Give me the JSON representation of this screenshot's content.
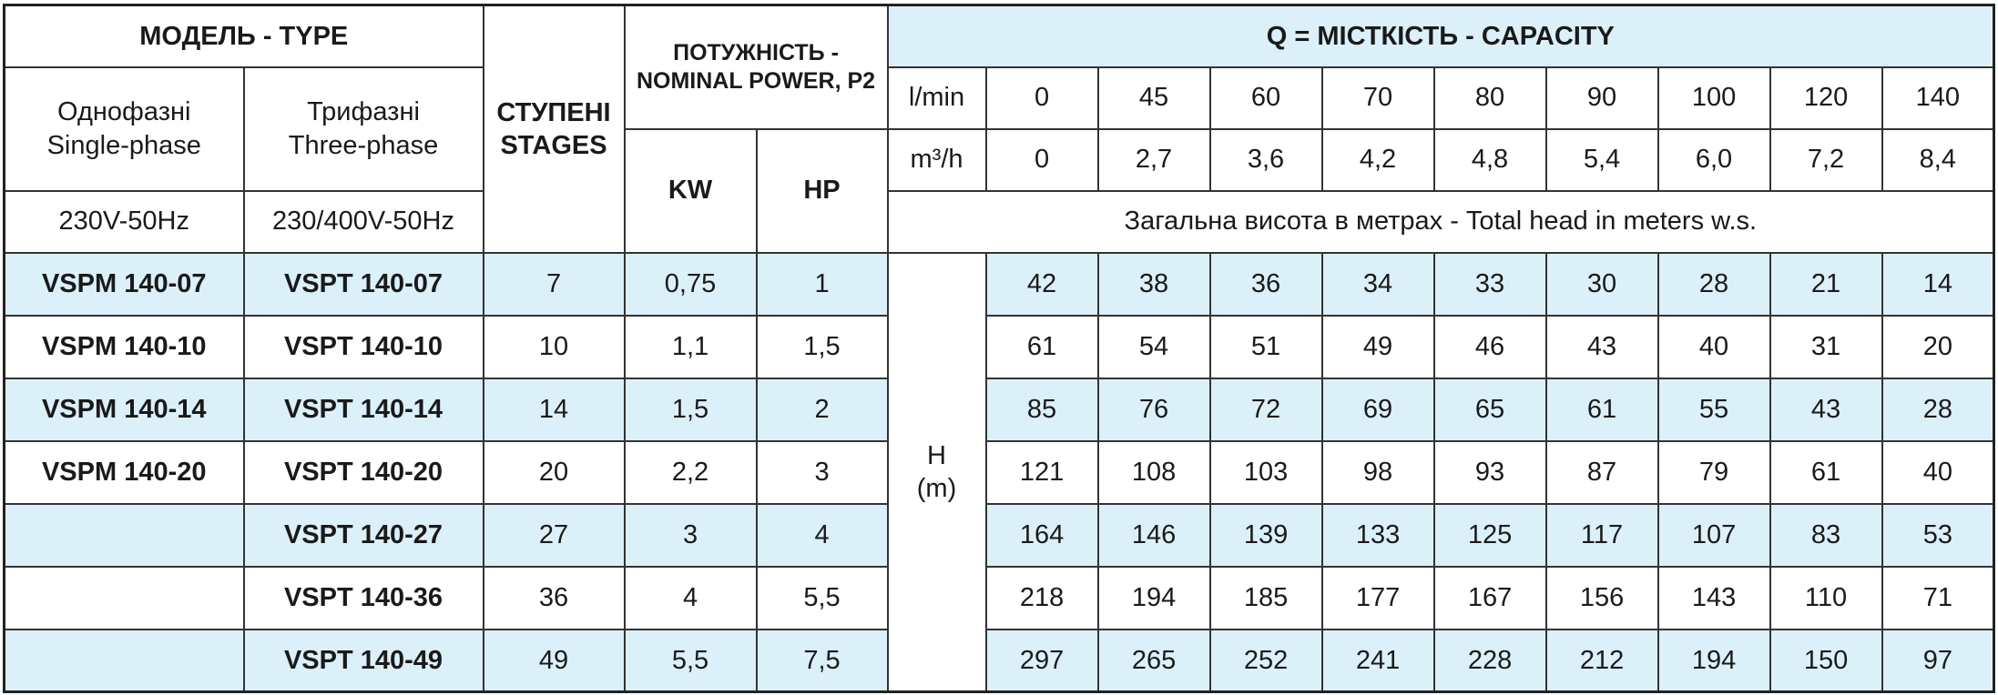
{
  "header": {
    "model_type": "МОДЕЛЬ - TYPE",
    "single_phase": [
      "Однофазні",
      "Single-phase"
    ],
    "three_phase": [
      "Трифазні",
      "Three-phase"
    ],
    "stages": [
      "СТУПЕНІ",
      "STAGES"
    ],
    "power": "ПОТУЖНІСТЬ - NOMINAL POWER, P2",
    "kw": "KW",
    "hp": "HP",
    "capacity": "Q = МІСТКІСТЬ - CAPACITY",
    "lmin_label": "l/min",
    "m3h_label": "m³/h",
    "lmin": [
      "0",
      "45",
      "60",
      "70",
      "80",
      "90",
      "100",
      "120",
      "140"
    ],
    "m3h": [
      "0",
      "2,7",
      "3,6",
      "4,2",
      "4,8",
      "5,4",
      "6,0",
      "7,2",
      "8,4"
    ],
    "single_voltage": "230V-50Hz",
    "three_voltage": "230/400V-50Hz",
    "total_head": "Загальна висота в метрах - Total head in meters w.s.",
    "h_label": [
      "H",
      "(m)"
    ]
  },
  "rows": [
    {
      "single": "VSPM 140-07",
      "three": "VSPT 140-07",
      "stages": "7",
      "kw": "0,75",
      "hp": "1",
      "head": [
        42,
        38,
        36,
        34,
        33,
        30,
        28,
        21,
        14
      ]
    },
    {
      "single": "VSPM 140-10",
      "three": "VSPT 140-10",
      "stages": "10",
      "kw": "1,1",
      "hp": "1,5",
      "head": [
        61,
        54,
        51,
        49,
        46,
        43,
        40,
        31,
        20
      ]
    },
    {
      "single": "VSPM 140-14",
      "three": "VSPT 140-14",
      "stages": "14",
      "kw": "1,5",
      "hp": "2",
      "head": [
        85,
        76,
        72,
        69,
        65,
        61,
        55,
        43,
        28
      ]
    },
    {
      "single": "VSPM 140-20",
      "three": "VSPT 140-20",
      "stages": "20",
      "kw": "2,2",
      "hp": "3",
      "head": [
        121,
        108,
        103,
        98,
        93,
        87,
        79,
        61,
        40
      ]
    },
    {
      "three": "VSPT 140-27",
      "stages": "27",
      "kw": "3",
      "hp": "4",
      "head": [
        164,
        146,
        139,
        133,
        125,
        117,
        107,
        83,
        53
      ]
    },
    {
      "three": "VSPT 140-36",
      "stages": "36",
      "kw": "4",
      "hp": "5,5",
      "head": [
        218,
        194,
        185,
        177,
        167,
        156,
        143,
        110,
        71
      ]
    },
    {
      "three": "VSPT 140-49",
      "stages": "49",
      "kw": "5,5",
      "hp": "7,5",
      "head": [
        297,
        265,
        252,
        241,
        228,
        212,
        194,
        150,
        97
      ]
    }
  ]
}
